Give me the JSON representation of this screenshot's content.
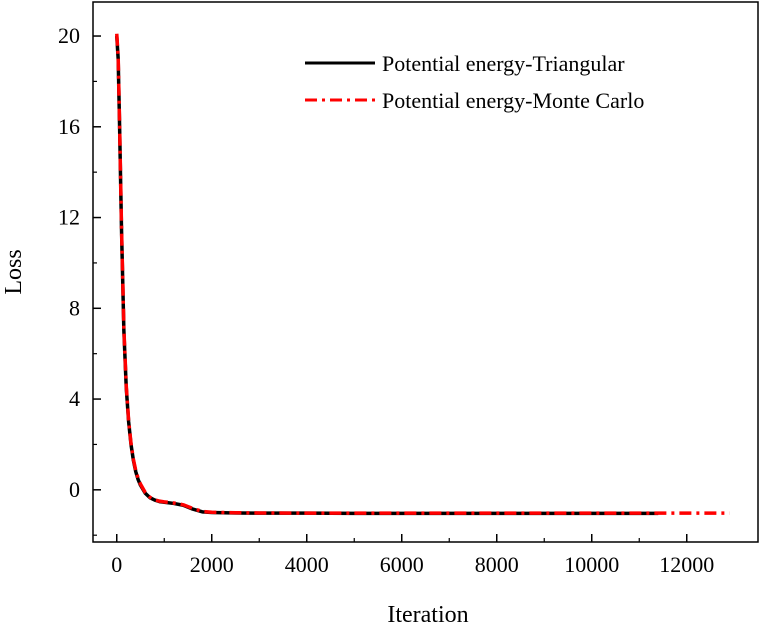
{
  "chart_data": {
    "type": "line",
    "title": "",
    "xlabel": "Iteration",
    "ylabel": "Loss",
    "xlim": [
      -500,
      13500
    ],
    "ylim": [
      -2.3,
      21.5
    ],
    "x_ticks": [
      0,
      2000,
      4000,
      6000,
      8000,
      10000,
      12000
    ],
    "y_ticks": [
      0,
      4,
      8,
      12,
      16,
      20
    ],
    "x_tick_labels": [
      "0",
      "2000",
      "4000",
      "6000",
      "8000",
      "10000",
      "12000"
    ],
    "y_tick_labels": [
      "0",
      "4",
      "8",
      "12",
      "16",
      "20"
    ],
    "grid": false,
    "legend": "top-right",
    "series": [
      {
        "name": "Potential energy-Triangular",
        "color": "#000000",
        "style": "solid",
        "x": [
          0,
          30,
          60,
          100,
          150,
          200,
          250,
          300,
          350,
          400,
          450,
          500,
          600,
          700,
          800,
          900,
          1000,
          1200,
          1400,
          1600,
          1800,
          2000,
          2500,
          3000,
          4000,
          5000,
          6000,
          7000,
          8000,
          9000,
          10000,
          11000,
          11400
        ],
        "y": [
          20.0,
          19.0,
          16.0,
          11.5,
          7.0,
          4.5,
          3.0,
          2.0,
          1.3,
          0.8,
          0.45,
          0.2,
          -0.15,
          -0.35,
          -0.45,
          -0.52,
          -0.55,
          -0.6,
          -0.68,
          -0.85,
          -0.97,
          -1.0,
          -1.02,
          -1.03,
          -1.03,
          -1.04,
          -1.04,
          -1.04,
          -1.04,
          -1.04,
          -1.04,
          -1.04,
          -1.04
        ]
      },
      {
        "name": "Potential energy-Monte Carlo",
        "color": "#ff0000",
        "style": "dashdot",
        "x": [
          0,
          30,
          60,
          100,
          150,
          200,
          250,
          300,
          350,
          400,
          450,
          500,
          600,
          700,
          800,
          900,
          1000,
          1200,
          1400,
          1600,
          1800,
          2000,
          2500,
          3000,
          4000,
          5000,
          6000,
          7000,
          8000,
          9000,
          10000,
          11000,
          12000,
          12900
        ],
        "y": [
          20.1,
          19.1,
          16.1,
          11.6,
          7.1,
          4.6,
          3.05,
          2.05,
          1.35,
          0.85,
          0.5,
          0.25,
          -0.12,
          -0.33,
          -0.44,
          -0.5,
          -0.53,
          -0.58,
          -0.66,
          -0.82,
          -0.95,
          -0.99,
          -1.01,
          -1.02,
          -1.03,
          -1.03,
          -1.03,
          -1.03,
          -1.03,
          -1.03,
          -1.03,
          -1.03,
          -1.03,
          -1.03
        ]
      }
    ]
  }
}
